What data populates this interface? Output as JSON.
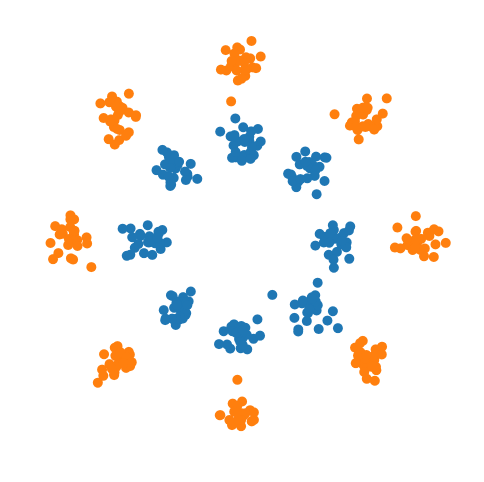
{
  "chart_data": {
    "type": "scatter",
    "title": "",
    "xlabel": "",
    "ylabel": "",
    "grid": false,
    "axes_visible": false,
    "legend": "none",
    "xlim": [
      -4.2,
      4.2
    ],
    "ylim": [
      -4.2,
      4.2
    ],
    "series": [
      {
        "color": "#1f77b4",
        "cluster_count": 8,
        "cluster_radius": 1.8,
        "cluster_spread": 0.2,
        "points_per_cluster": 25,
        "cluster_centers": [
          [
            1.8,
            0.0
          ],
          [
            1.27,
            1.27
          ],
          [
            0.0,
            1.8
          ],
          [
            -1.27,
            1.27
          ],
          [
            -1.8,
            0.0
          ],
          [
            -1.27,
            -1.27
          ],
          [
            0.0,
            -1.8
          ],
          [
            1.27,
            -1.27
          ]
        ]
      },
      {
        "color": "#ff7f0e",
        "cluster_count": 8,
        "cluster_radius": 3.3,
        "cluster_spread": 0.2,
        "points_per_cluster": 25,
        "cluster_centers": [
          [
            3.3,
            0.0
          ],
          [
            2.33,
            2.33
          ],
          [
            0.0,
            3.3
          ],
          [
            -2.33,
            2.33
          ],
          [
            -3.3,
            0.0
          ],
          [
            -2.33,
            -2.33
          ],
          [
            0.0,
            -3.3
          ],
          [
            2.33,
            -2.33
          ]
        ]
      }
    ]
  }
}
